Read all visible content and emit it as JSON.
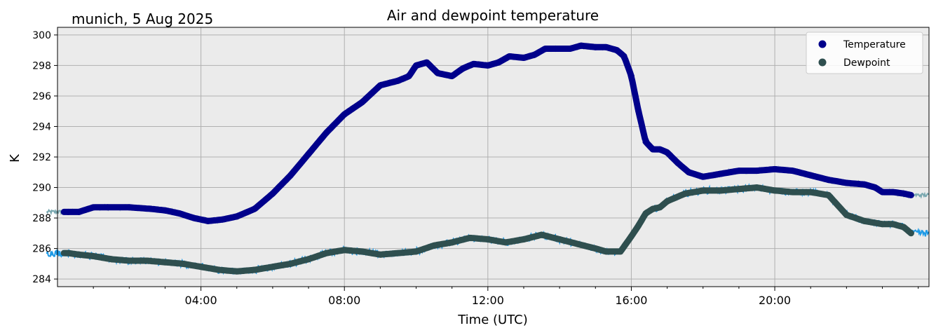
{
  "chart_data": {
    "type": "line",
    "title": "Air and dewpoint temperature",
    "subtitle": "munich, 5 Aug 2025",
    "xlabel": "Time (UTC)",
    "ylabel": "K",
    "xlim_hours": [
      0,
      24.3
    ],
    "ylim": [
      283.5,
      300.5
    ],
    "x_ticks": [
      {
        "hour": 4,
        "label": "04:00"
      },
      {
        "hour": 8,
        "label": "08:00"
      },
      {
        "hour": 12,
        "label": "12:00"
      },
      {
        "hour": 16,
        "label": "16:00"
      },
      {
        "hour": 20,
        "label": "20:00"
      }
    ],
    "y_ticks": [
      284,
      286,
      288,
      290,
      292,
      294,
      296,
      298,
      300
    ],
    "minor_x_ticks_hours": [
      1,
      2,
      3,
      5,
      6,
      7,
      9,
      10,
      11,
      13,
      14,
      15,
      17,
      18,
      19,
      21,
      22,
      23,
      24
    ],
    "grid": true,
    "legend": {
      "position": "top-right"
    },
    "series": [
      {
        "name": "Temperature",
        "color": "#00008b",
        "raw_color": "#7aa8b0",
        "x_hours": [
          0.0,
          0.3,
          0.6,
          1.0,
          1.4,
          2.0,
          2.6,
          3.0,
          3.4,
          3.8,
          4.2,
          4.6,
          5.0,
          5.5,
          6.0,
          6.5,
          7.0,
          7.5,
          8.0,
          8.5,
          9.0,
          9.5,
          9.8,
          10.0,
          10.3,
          10.6,
          11.0,
          11.3,
          11.6,
          12.0,
          12.3,
          12.6,
          13.0,
          13.3,
          13.6,
          14.0,
          14.3,
          14.6,
          15.0,
          15.3,
          15.6,
          15.8,
          16.0,
          16.2,
          16.4,
          16.6,
          16.8,
          17.0,
          17.3,
          17.6,
          18.0,
          18.5,
          19.0,
          19.5,
          20.0,
          20.5,
          21.0,
          21.5,
          22.0,
          22.5,
          22.8,
          23.0,
          23.3,
          23.6,
          23.8
        ],
        "values": [
          288.4,
          288.4,
          288.4,
          288.7,
          288.7,
          288.7,
          288.6,
          288.5,
          288.3,
          288.0,
          287.8,
          287.9,
          288.1,
          288.6,
          289.6,
          290.8,
          292.2,
          293.6,
          294.8,
          295.6,
          296.7,
          297.0,
          297.3,
          298.0,
          298.2,
          297.5,
          297.3,
          297.8,
          298.1,
          298.0,
          298.2,
          298.6,
          298.5,
          298.7,
          299.1,
          299.1,
          299.1,
          299.3,
          299.2,
          299.2,
          299.0,
          298.6,
          297.3,
          295.0,
          293.0,
          292.5,
          292.5,
          292.3,
          291.6,
          291.0,
          290.7,
          290.9,
          291.1,
          291.1,
          291.2,
          291.1,
          290.8,
          290.5,
          290.3,
          290.2,
          290.0,
          289.7,
          289.7,
          289.6,
          289.5
        ]
      },
      {
        "name": "Dewpoint",
        "color": "#2f4f4f",
        "raw_color": "#1e9ae6",
        "x_hours": [
          0.0,
          0.3,
          0.6,
          1.0,
          1.5,
          2.0,
          2.5,
          3.0,
          3.5,
          4.0,
          4.5,
          5.0,
          5.5,
          6.0,
          6.5,
          7.0,
          7.5,
          8.0,
          8.5,
          9.0,
          9.5,
          10.0,
          10.5,
          11.0,
          11.5,
          12.0,
          12.5,
          13.0,
          13.5,
          14.0,
          14.5,
          15.0,
          15.3,
          15.7,
          16.0,
          16.2,
          16.4,
          16.6,
          16.8,
          17.0,
          17.5,
          18.0,
          18.5,
          19.0,
          19.5,
          20.0,
          20.5,
          21.0,
          21.5,
          22.0,
          22.5,
          23.0,
          23.3,
          23.6,
          23.8
        ],
        "values": [
          285.7,
          285.7,
          285.6,
          285.5,
          285.3,
          285.2,
          285.2,
          285.1,
          285.0,
          284.8,
          284.6,
          284.5,
          284.6,
          284.8,
          285.0,
          285.3,
          285.7,
          285.9,
          285.8,
          285.6,
          285.7,
          285.8,
          286.2,
          286.4,
          286.7,
          286.6,
          286.4,
          286.6,
          286.9,
          286.6,
          286.3,
          286.0,
          285.8,
          285.8,
          286.8,
          287.5,
          288.3,
          288.6,
          288.7,
          289.1,
          289.6,
          289.8,
          289.8,
          289.9,
          290.0,
          289.8,
          289.7,
          289.7,
          289.5,
          288.2,
          287.8,
          287.6,
          287.6,
          287.4,
          287.0
        ]
      }
    ]
  }
}
